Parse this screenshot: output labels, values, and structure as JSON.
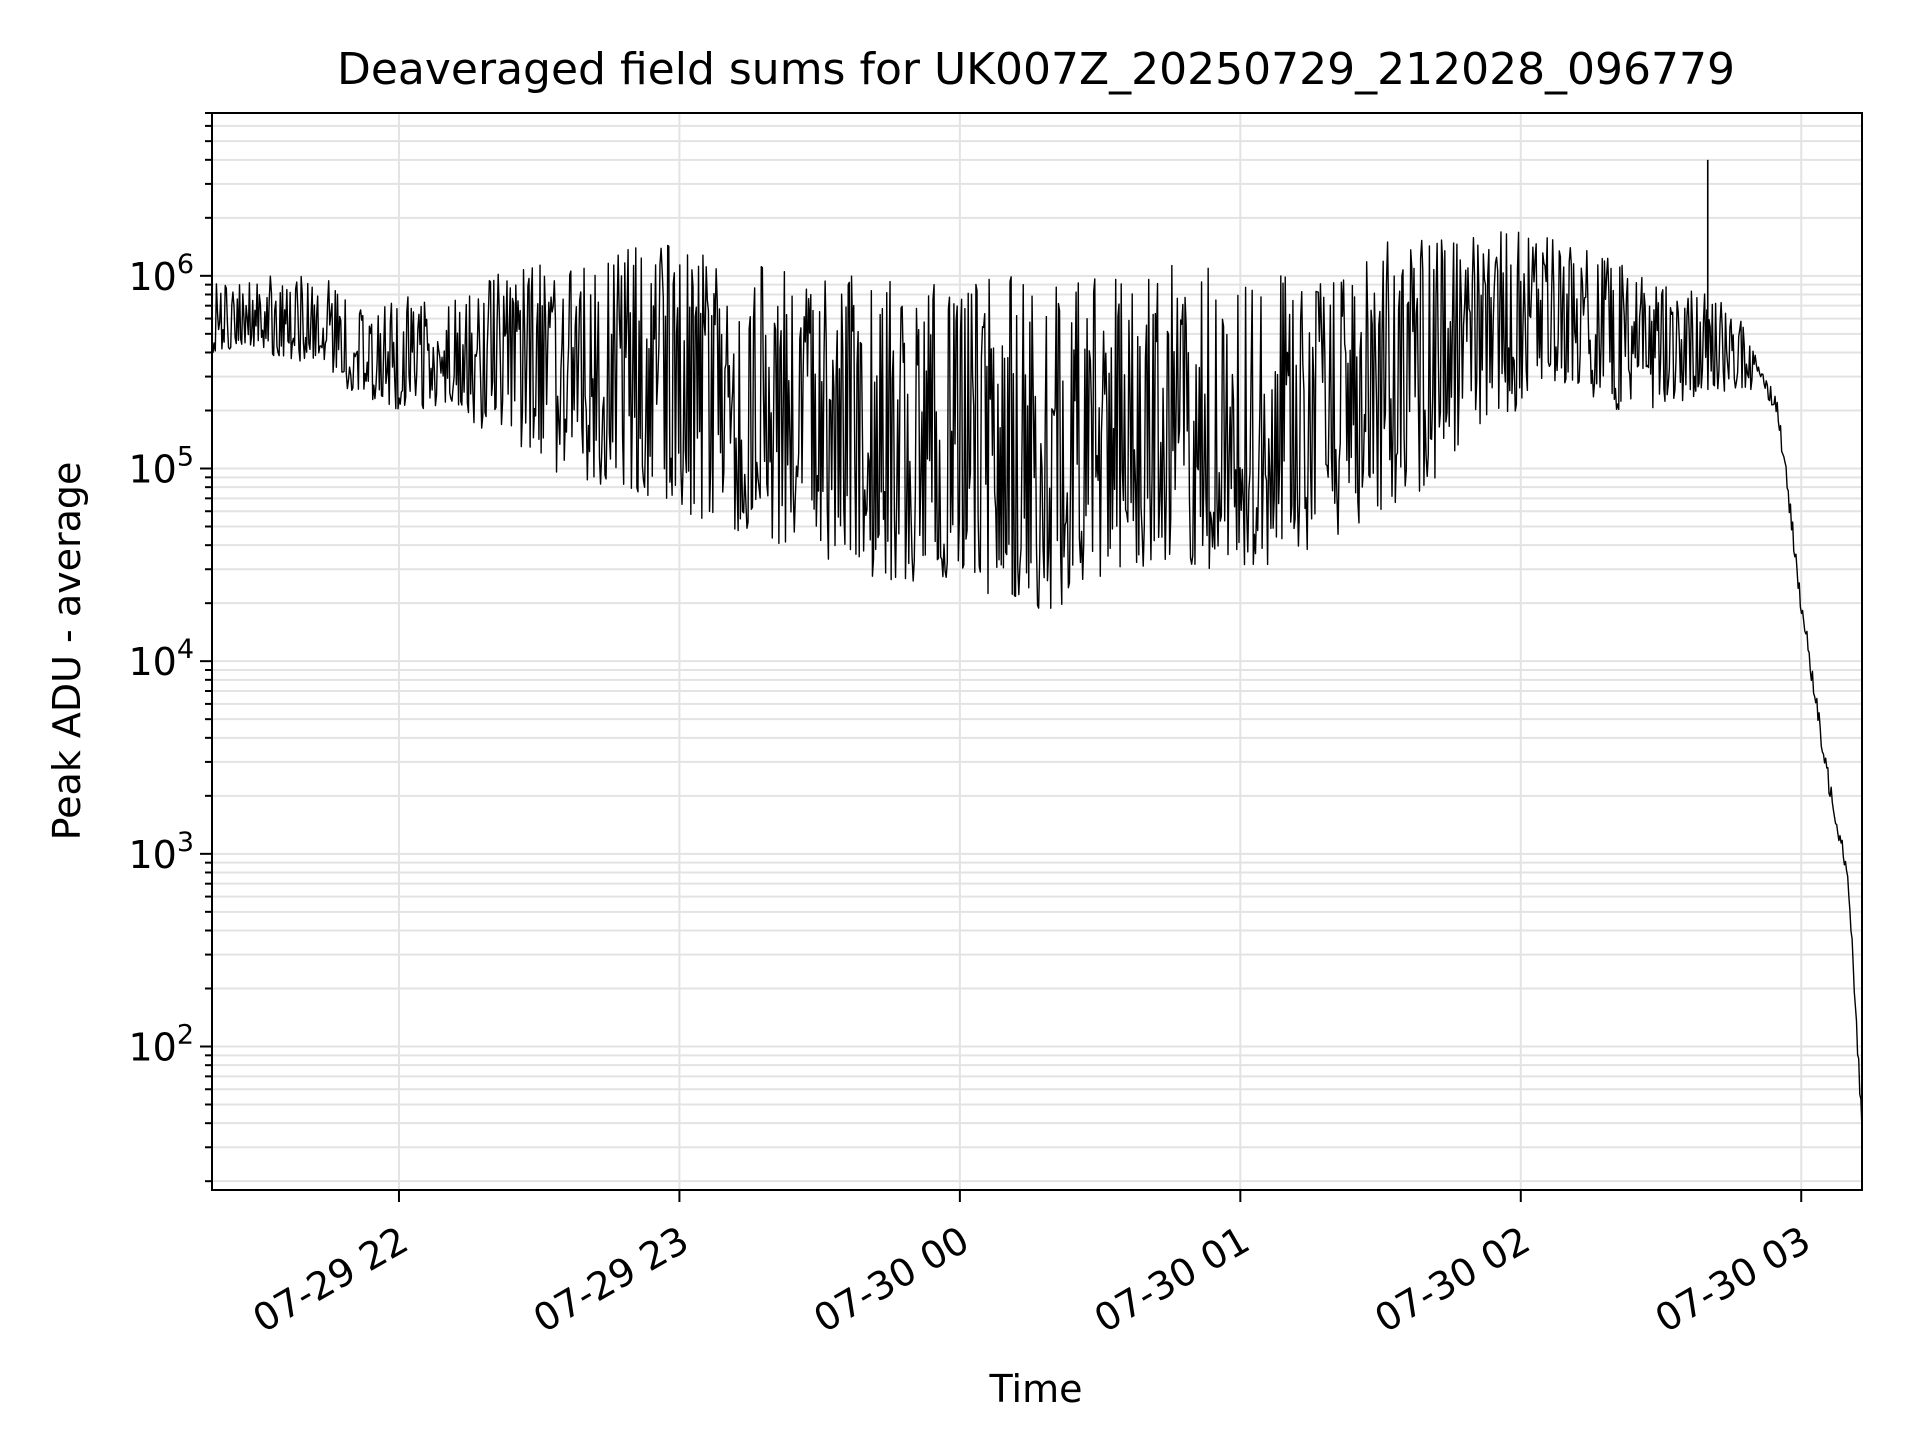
{
  "chart_data": {
    "type": "line",
    "title": "Deaveraged field sums for UK007Z_20250729_212028_096779",
    "xlabel": "Time",
    "ylabel": "Peak ADU - average",
    "x_tick_labels": [
      "07-29 22",
      "07-29 23",
      "07-30 00",
      "07-30 01",
      "07-30 02",
      "07-30 03"
    ],
    "y_tick_labels": [
      {
        "base": "10",
        "exp": "2"
      },
      {
        "base": "10",
        "exp": "3"
      },
      {
        "base": "10",
        "exp": "4"
      },
      {
        "base": "10",
        "exp": "5"
      },
      {
        "base": "10",
        "exp": "6"
      }
    ],
    "yscale": "log",
    "xlim": [
      "2025-07-29 21:20",
      "2025-07-30 03:13"
    ],
    "ylim": [
      18,
      7000000
    ],
    "grid": true,
    "line_color": "#000000",
    "series": [
      {
        "x": [
          "2025-07-29 21:20",
          "2025-07-29 21:30",
          "2025-07-29 21:40",
          "2025-07-29 21:50",
          "2025-07-29 22:00",
          "2025-07-29 22:10",
          "2025-07-29 22:20",
          "2025-07-29 22:30",
          "2025-07-29 22:40",
          "2025-07-29 22:50",
          "2025-07-29 23:00",
          "2025-07-29 23:10",
          "2025-07-29 23:20",
          "2025-07-29 23:30",
          "2025-07-29 23:40",
          "2025-07-29 23:50",
          "2025-07-30 00:00",
          "2025-07-30 00:10",
          "2025-07-30 00:20",
          "2025-07-30 00:30",
          "2025-07-30 00:40",
          "2025-07-30 00:50",
          "2025-07-30 01:00",
          "2025-07-30 01:10",
          "2025-07-30 01:20",
          "2025-07-30 01:30",
          "2025-07-30 01:40",
          "2025-07-30 01:50",
          "2025-07-30 02:00",
          "2025-07-30 02:10",
          "2025-07-30 02:20",
          "2025-07-30 02:30",
          "2025-07-30 02:40",
          "2025-07-30 02:45",
          "2025-07-30 02:50",
          "2025-07-30 02:55",
          "2025-07-30 03:00",
          "2025-07-30 03:05",
          "2025-07-30 03:10",
          "2025-07-30 03:13"
        ],
        "y_median": [
          550000,
          550000,
          500000,
          420000,
          380000,
          350000,
          380000,
          400000,
          350000,
          300000,
          250000,
          220000,
          180000,
          160000,
          140000,
          120000,
          110000,
          110000,
          120000,
          130000,
          140000,
          150000,
          160000,
          170000,
          200000,
          250000,
          320000,
          400000,
          480000,
          550000,
          550000,
          450000,
          420000,
          400000,
          380000,
          200000,
          20000,
          3000,
          800,
          40
        ],
        "y_low": [
          400000,
          400000,
          350000,
          250000,
          200000,
          200000,
          150000,
          100000,
          80000,
          70000,
          60000,
          50000,
          40000,
          30000,
          28000,
          25000,
          25000,
          20000,
          18000,
          25000,
          28000,
          30000,
          28000,
          30000,
          40000,
          60000,
          80000,
          150000,
          200000,
          250000,
          200000,
          200000,
          250000,
          250000,
          250000,
          null,
          null,
          null,
          null,
          null
        ],
        "y_high": [
          900000,
          1000000,
          1000000,
          900000,
          800000,
          700000,
          1000000,
          1200000,
          1300000,
          1500000,
          1500000,
          1200000,
          1100000,
          1000000,
          1000000,
          950000,
          1000000,
          1000000,
          1000000,
          1100000,
          1100000,
          1200000,
          1200000,
          1200000,
          1300000,
          1500000,
          1600000,
          1700000,
          1700000,
          1500000,
          1300000,
          900000,
          800000,
          700000,
          500000,
          null,
          null,
          null,
          null,
          null
        ]
      }
    ],
    "spike": {
      "x": "2025-07-30 02:40",
      "y": 4000000
    }
  }
}
